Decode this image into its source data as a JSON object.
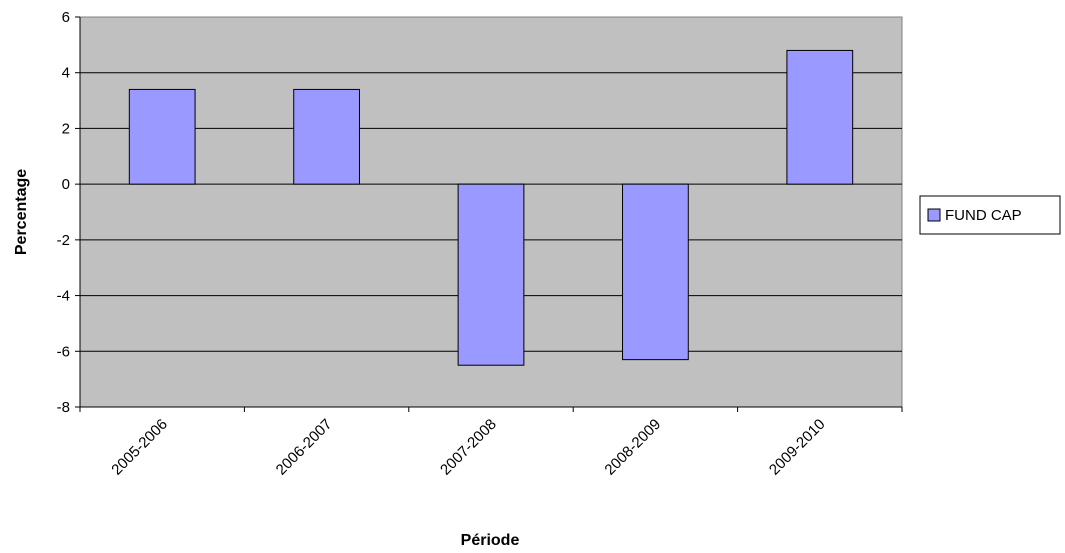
{
  "chart_data": {
    "type": "bar",
    "categories": [
      "2005-2006",
      "2006-2007",
      "2007-2008",
      "2008-2009",
      "2009-2010"
    ],
    "series": [
      {
        "name": "FUND CAP",
        "values": [
          3.4,
          3.4,
          -6.5,
          -6.3,
          4.8
        ]
      }
    ],
    "xlabel": "Période",
    "ylabel": "Percentage",
    "ylim": [
      -8,
      6
    ],
    "y_ticks": [
      6,
      4,
      2,
      0,
      -2,
      -4,
      -6,
      -8
    ],
    "grid": true,
    "legend": "right",
    "colors": {
      "plot_background": "#c0c0c0",
      "bar_fill": "#9999ff",
      "bar_stroke": "#000000",
      "gridline": "#000000"
    }
  }
}
